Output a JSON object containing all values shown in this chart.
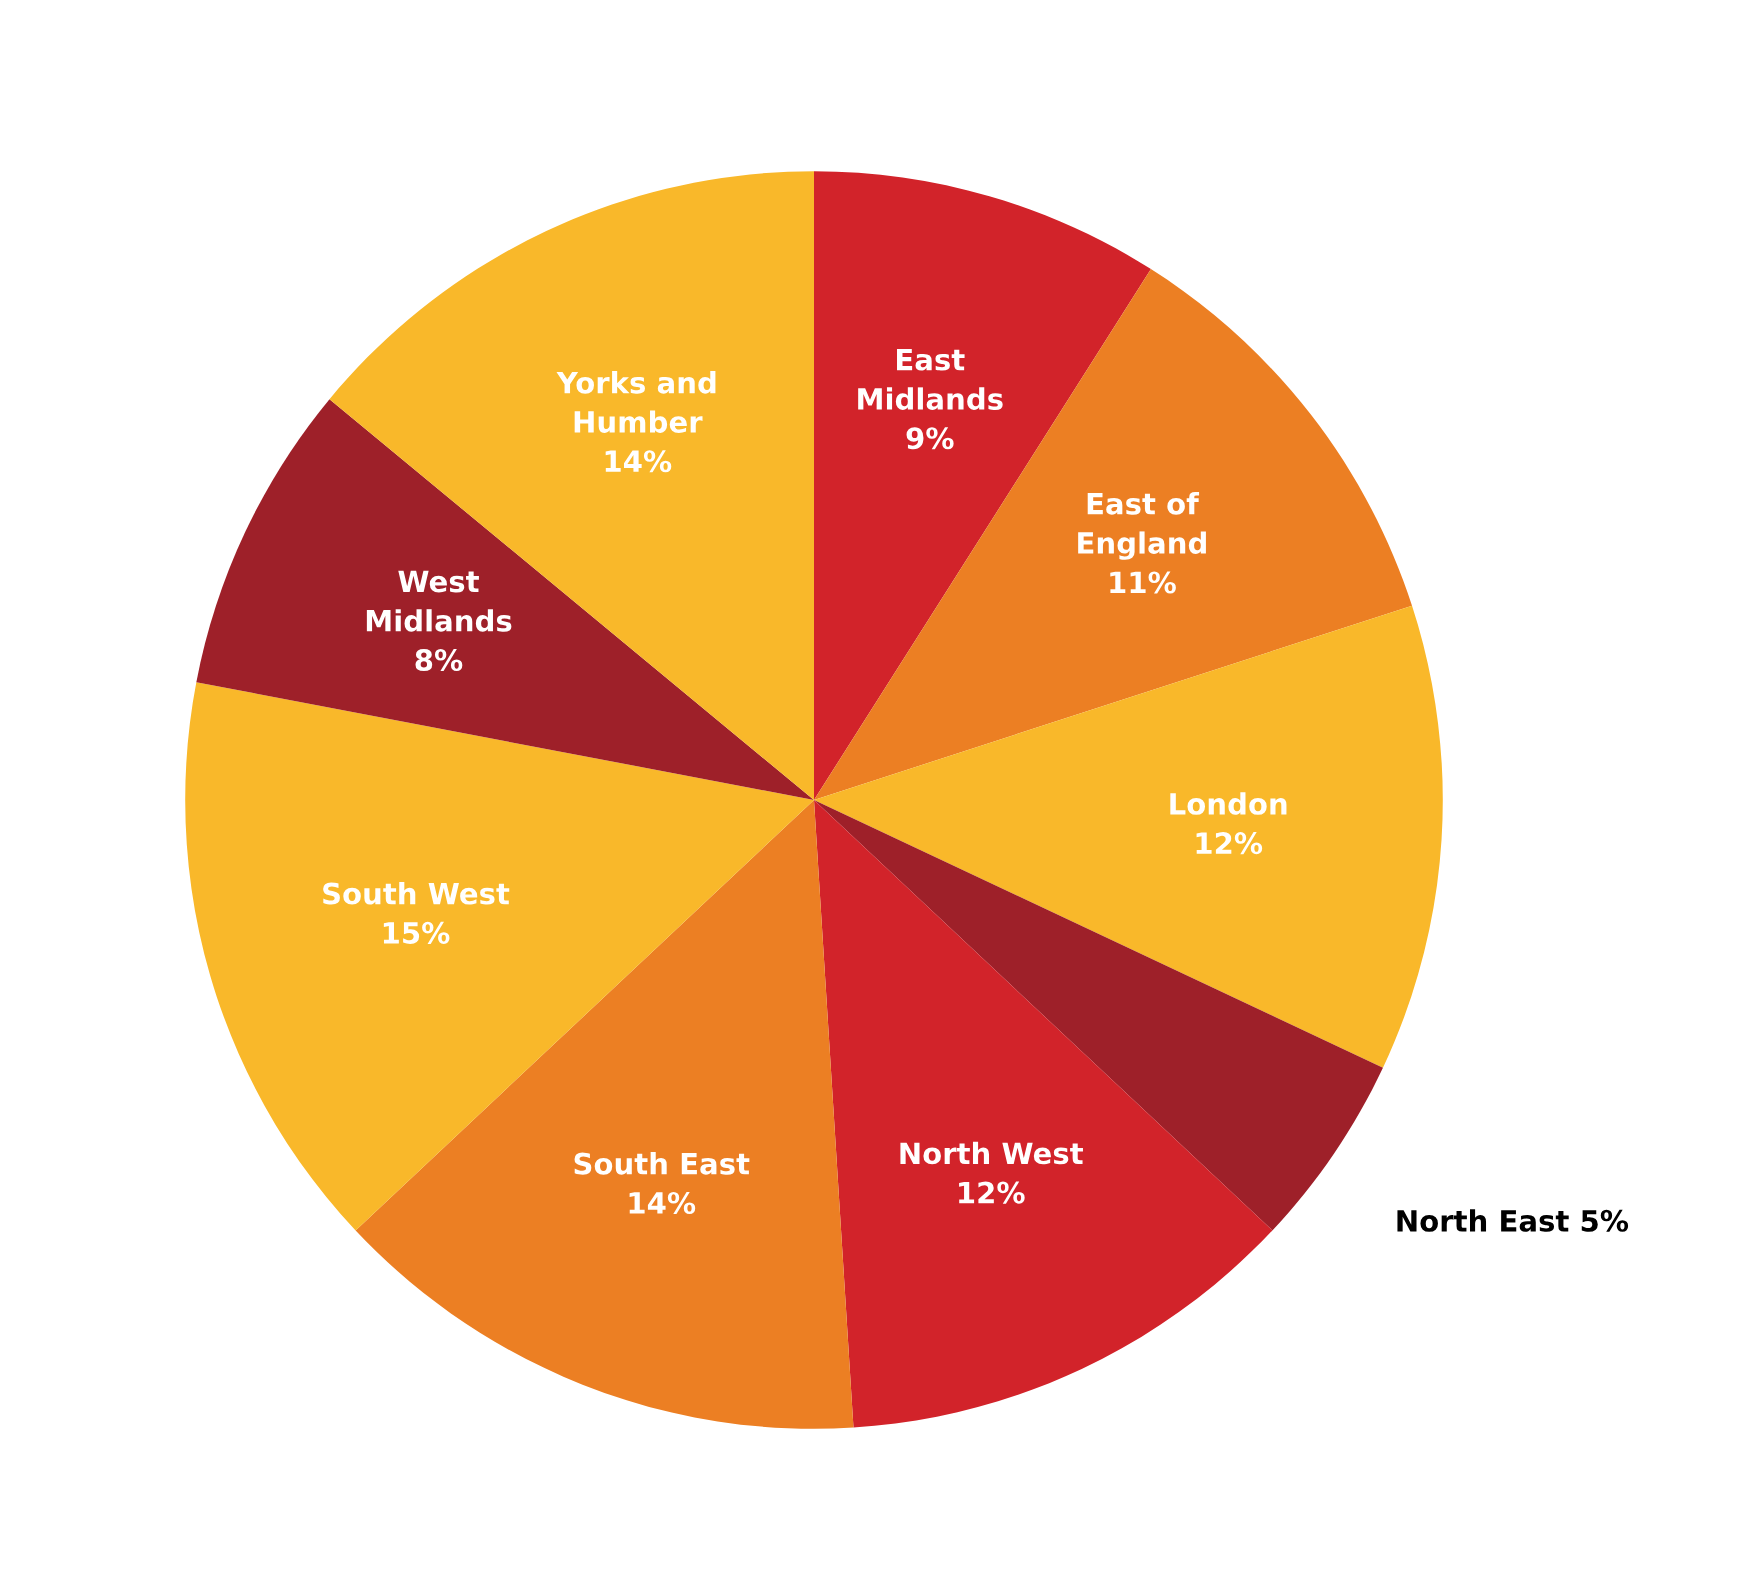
{
  "chart_data": {
    "type": "pie",
    "categories": [
      "East\nMidlands",
      "East of\nEngland",
      "London",
      "North East",
      "North West",
      "South East",
      "South West",
      "West\nMidlands",
      "Yorks and\nHumber"
    ],
    "values": [
      9,
      11,
      12,
      5,
      12,
      14,
      15,
      8,
      14
    ],
    "value_labels": [
      "9%",
      "11%",
      "12%",
      "5%",
      "12%",
      "14%",
      "15%",
      "8%",
      "14%"
    ],
    "colors": [
      "#d2232a",
      "#ec7f23",
      "#f9b82a",
      "#9e2029",
      "#d2232a",
      "#ec7f23",
      "#f9b82a",
      "#9e2029",
      "#f9b82a"
    ]
  }
}
